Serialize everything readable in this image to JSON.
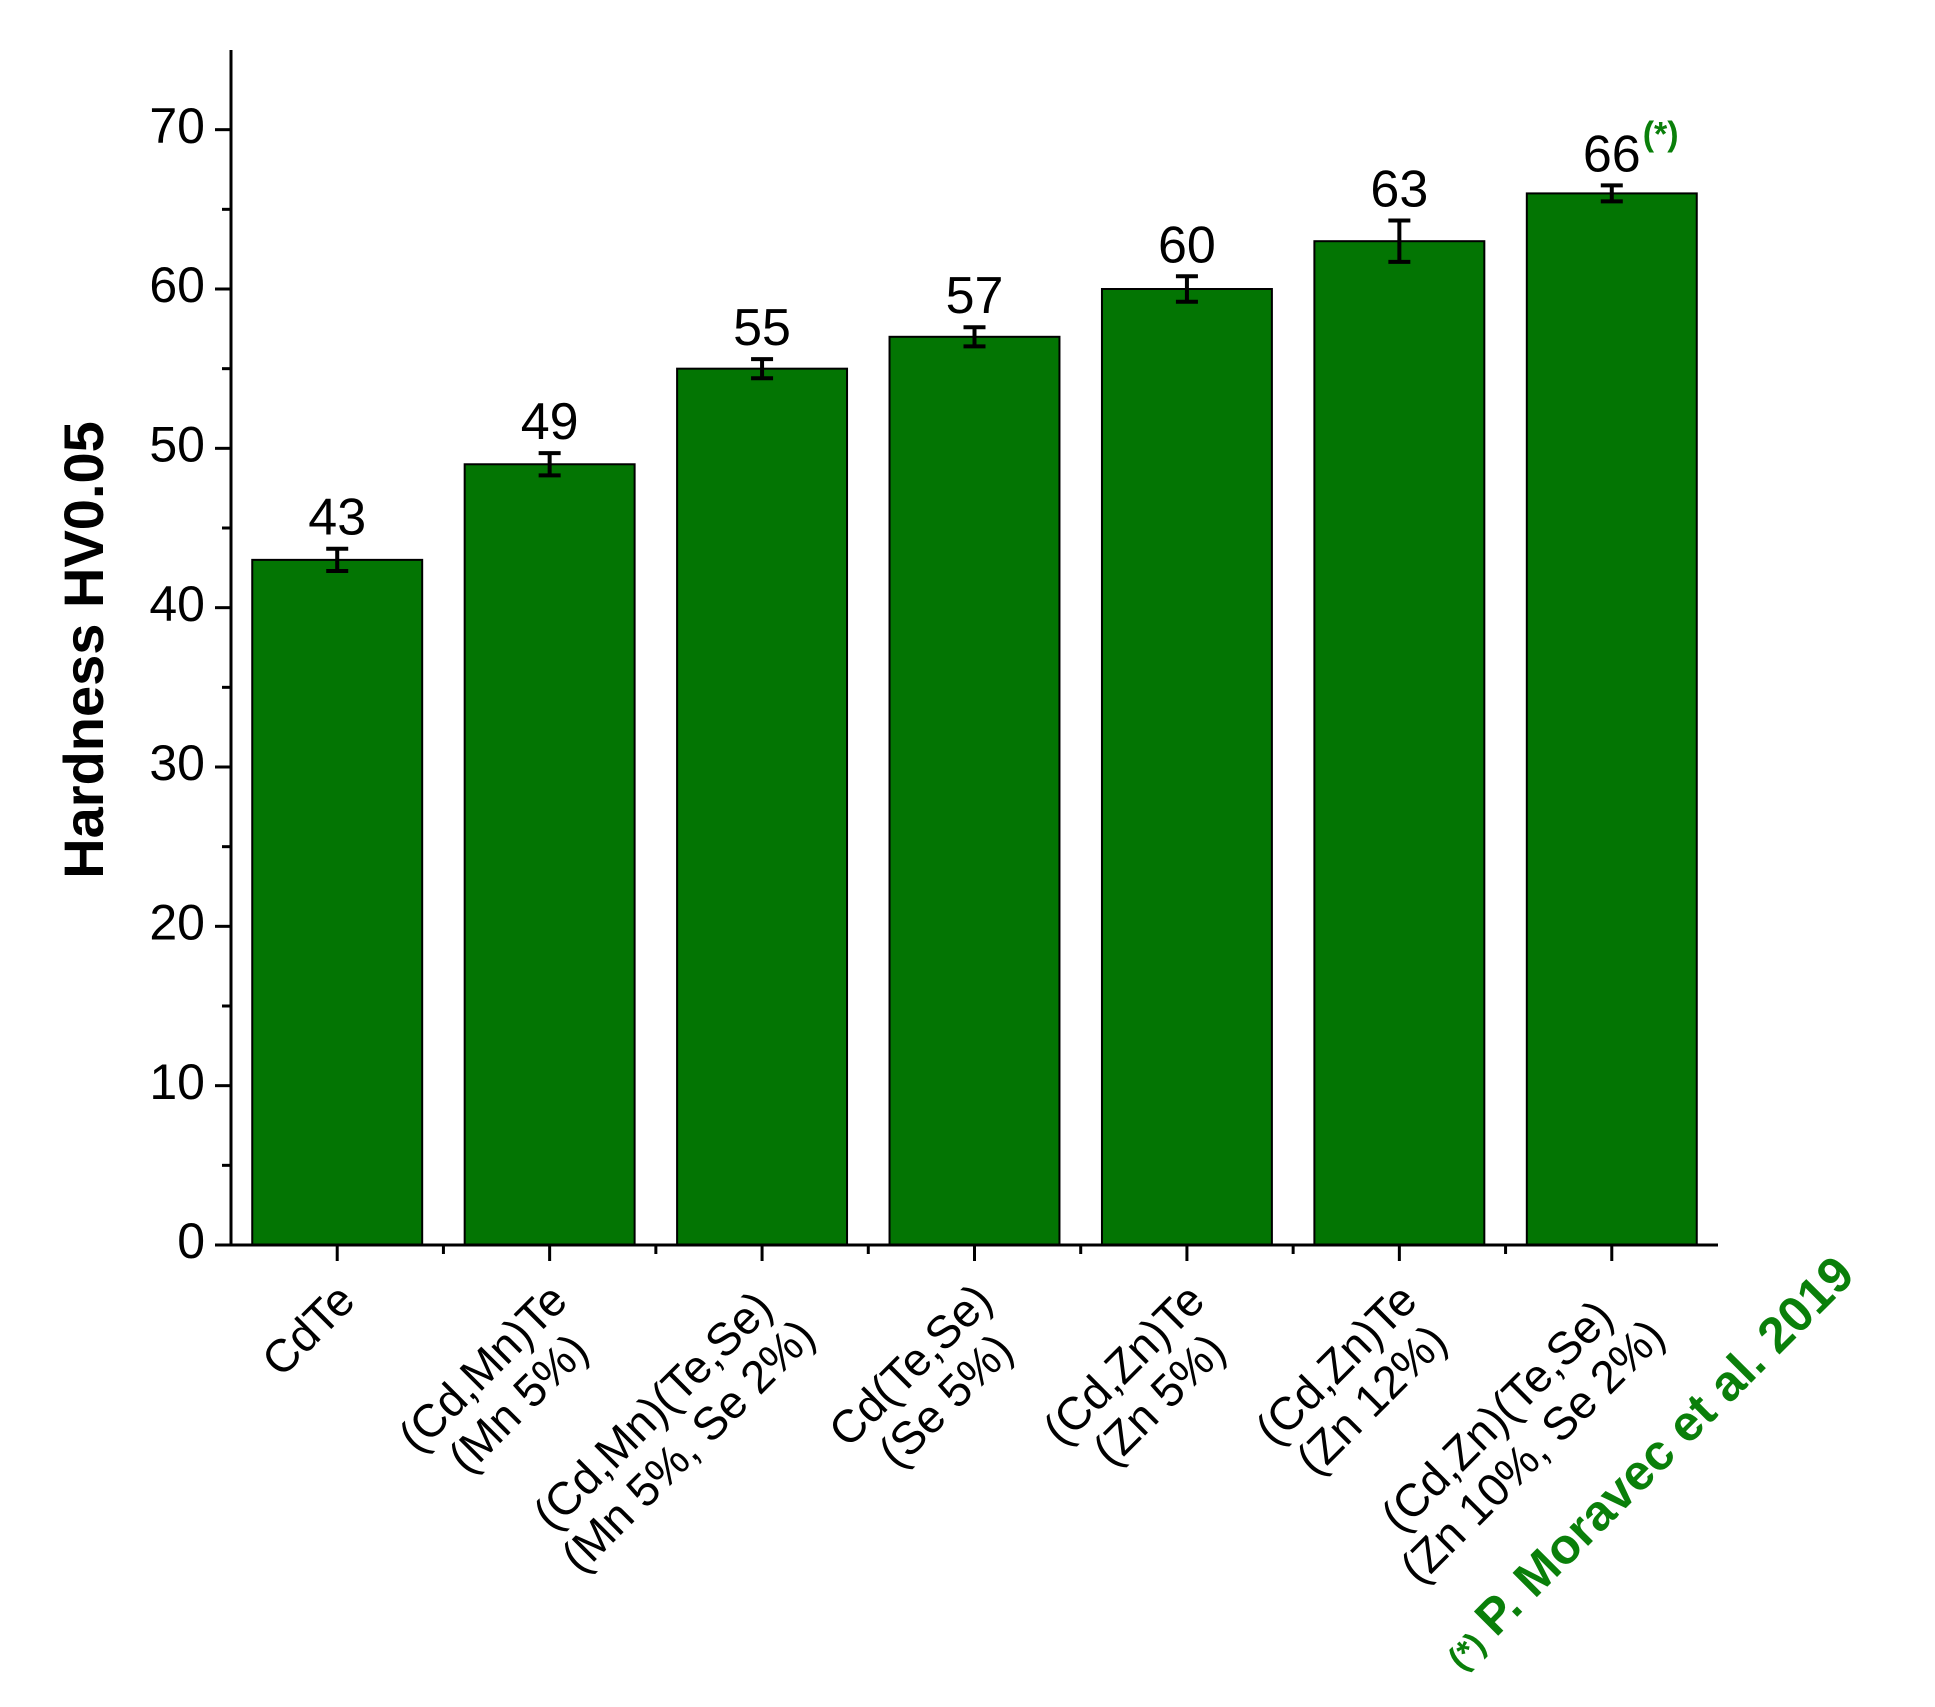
{
  "chart_data": {
    "type": "bar",
    "y_label": "Hardness HV0.05",
    "categories": [
      [
        "CdTe"
      ],
      [
        "(Cd,Mn)Te",
        "(Mn 5%)"
      ],
      [
        "(Cd,Mn)(Te,Se)",
        "(Mn 5%, Se 2%)"
      ],
      [
        "Cd(Te,Se)",
        "(Se 5%)"
      ],
      [
        "(Cd,Zn)Te",
        "(Zn 5%)"
      ],
      [
        "(Cd,Zn)Te",
        "(Zn 12%)"
      ],
      [
        "(Cd,Zn)(Te,Se)",
        "(Zn 10%, Se 2%)"
      ]
    ],
    "values": [
      43,
      49,
      55,
      57,
      60,
      63,
      66
    ],
    "errors": [
      0.7,
      0.7,
      0.6,
      0.6,
      0.8,
      1.3,
      0.5
    ],
    "color": "#037503",
    "ylim": [
      0,
      75
    ],
    "yticks": [
      0,
      10,
      20,
      30,
      40,
      50,
      60,
      70
    ],
    "yminorticks": [
      5,
      15,
      25,
      35,
      45,
      55,
      65
    ],
    "annotation_marker": "(*)",
    "annotation_color": "#0a7f0a",
    "footnote": "P. Moravec et al. 2019"
  }
}
